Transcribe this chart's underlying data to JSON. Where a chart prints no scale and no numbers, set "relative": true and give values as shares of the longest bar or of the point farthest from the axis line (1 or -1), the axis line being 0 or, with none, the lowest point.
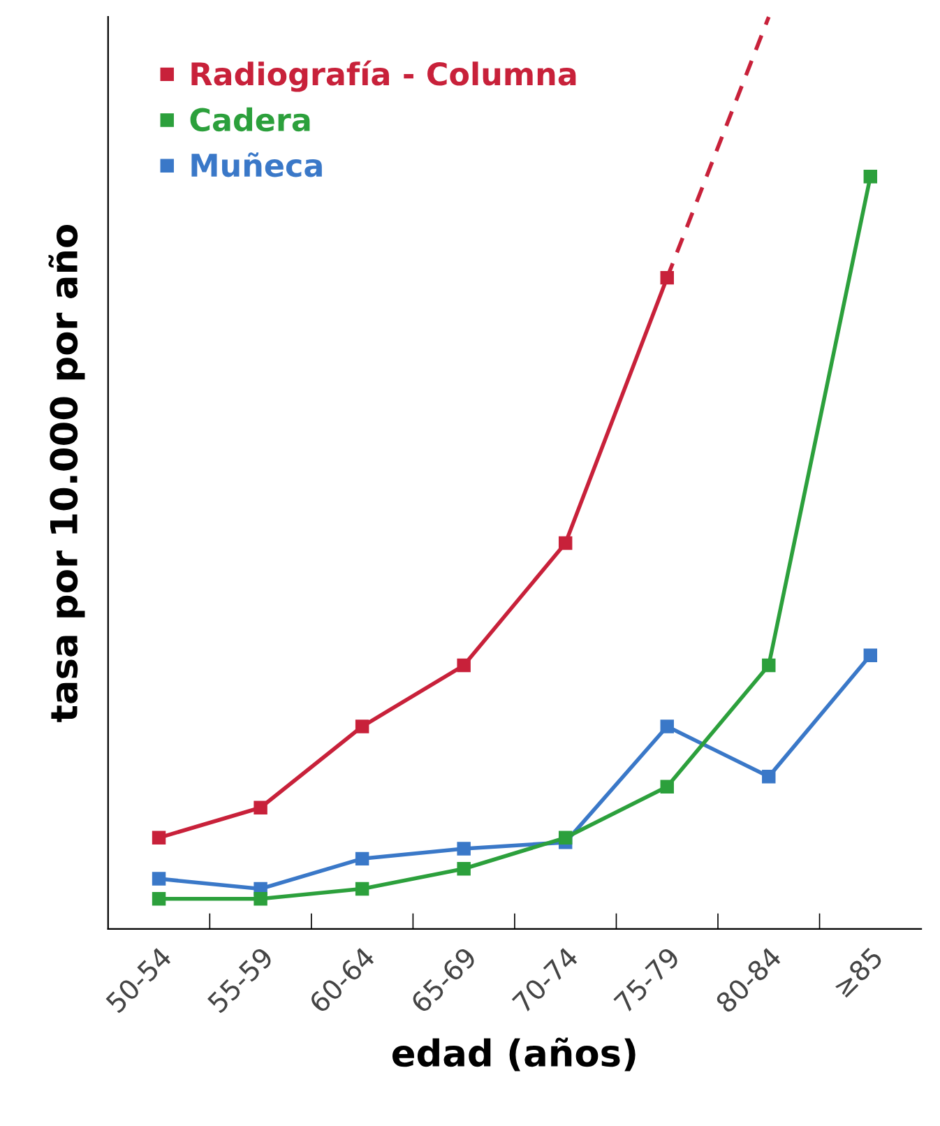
{
  "chart_data": {
    "type": "line",
    "relative": true,
    "xlabel": "edad (años)",
    "ylabel": "tasa por 10.000 por año",
    "categories": [
      "50-54",
      "55-59",
      "60-64",
      "65-69",
      "70-74",
      "75-79",
      "80-84",
      "≥85"
    ],
    "series": [
      {
        "name": "Radiografía - Columna",
        "color": "#c8213a",
        "marker": "square",
        "line_style": "solid",
        "values": [
          0.1,
          0.133,
          0.222,
          0.289,
          0.423,
          0.714,
          null,
          null
        ]
      },
      {
        "color": "#c8213a",
        "line_style": "dashed",
        "values": [
          null,
          null,
          null,
          null,
          null,
          0.714,
          1.0,
          null
        ]
      },
      {
        "name": "Cadera",
        "color": "#2ca03c",
        "marker": "square",
        "line_style": "solid",
        "values": [
          0.033,
          0.033,
          0.044,
          0.066,
          0.1,
          0.156,
          0.289,
          0.825
        ]
      },
      {
        "name": "Muñeca",
        "color": "#3a78c8",
        "marker": "square",
        "line_style": "solid",
        "values": [
          0.055,
          0.044,
          0.077,
          0.088,
          0.095,
          0.222,
          0.167,
          0.3
        ]
      }
    ],
    "legend": "top left",
    "grid": false
  }
}
